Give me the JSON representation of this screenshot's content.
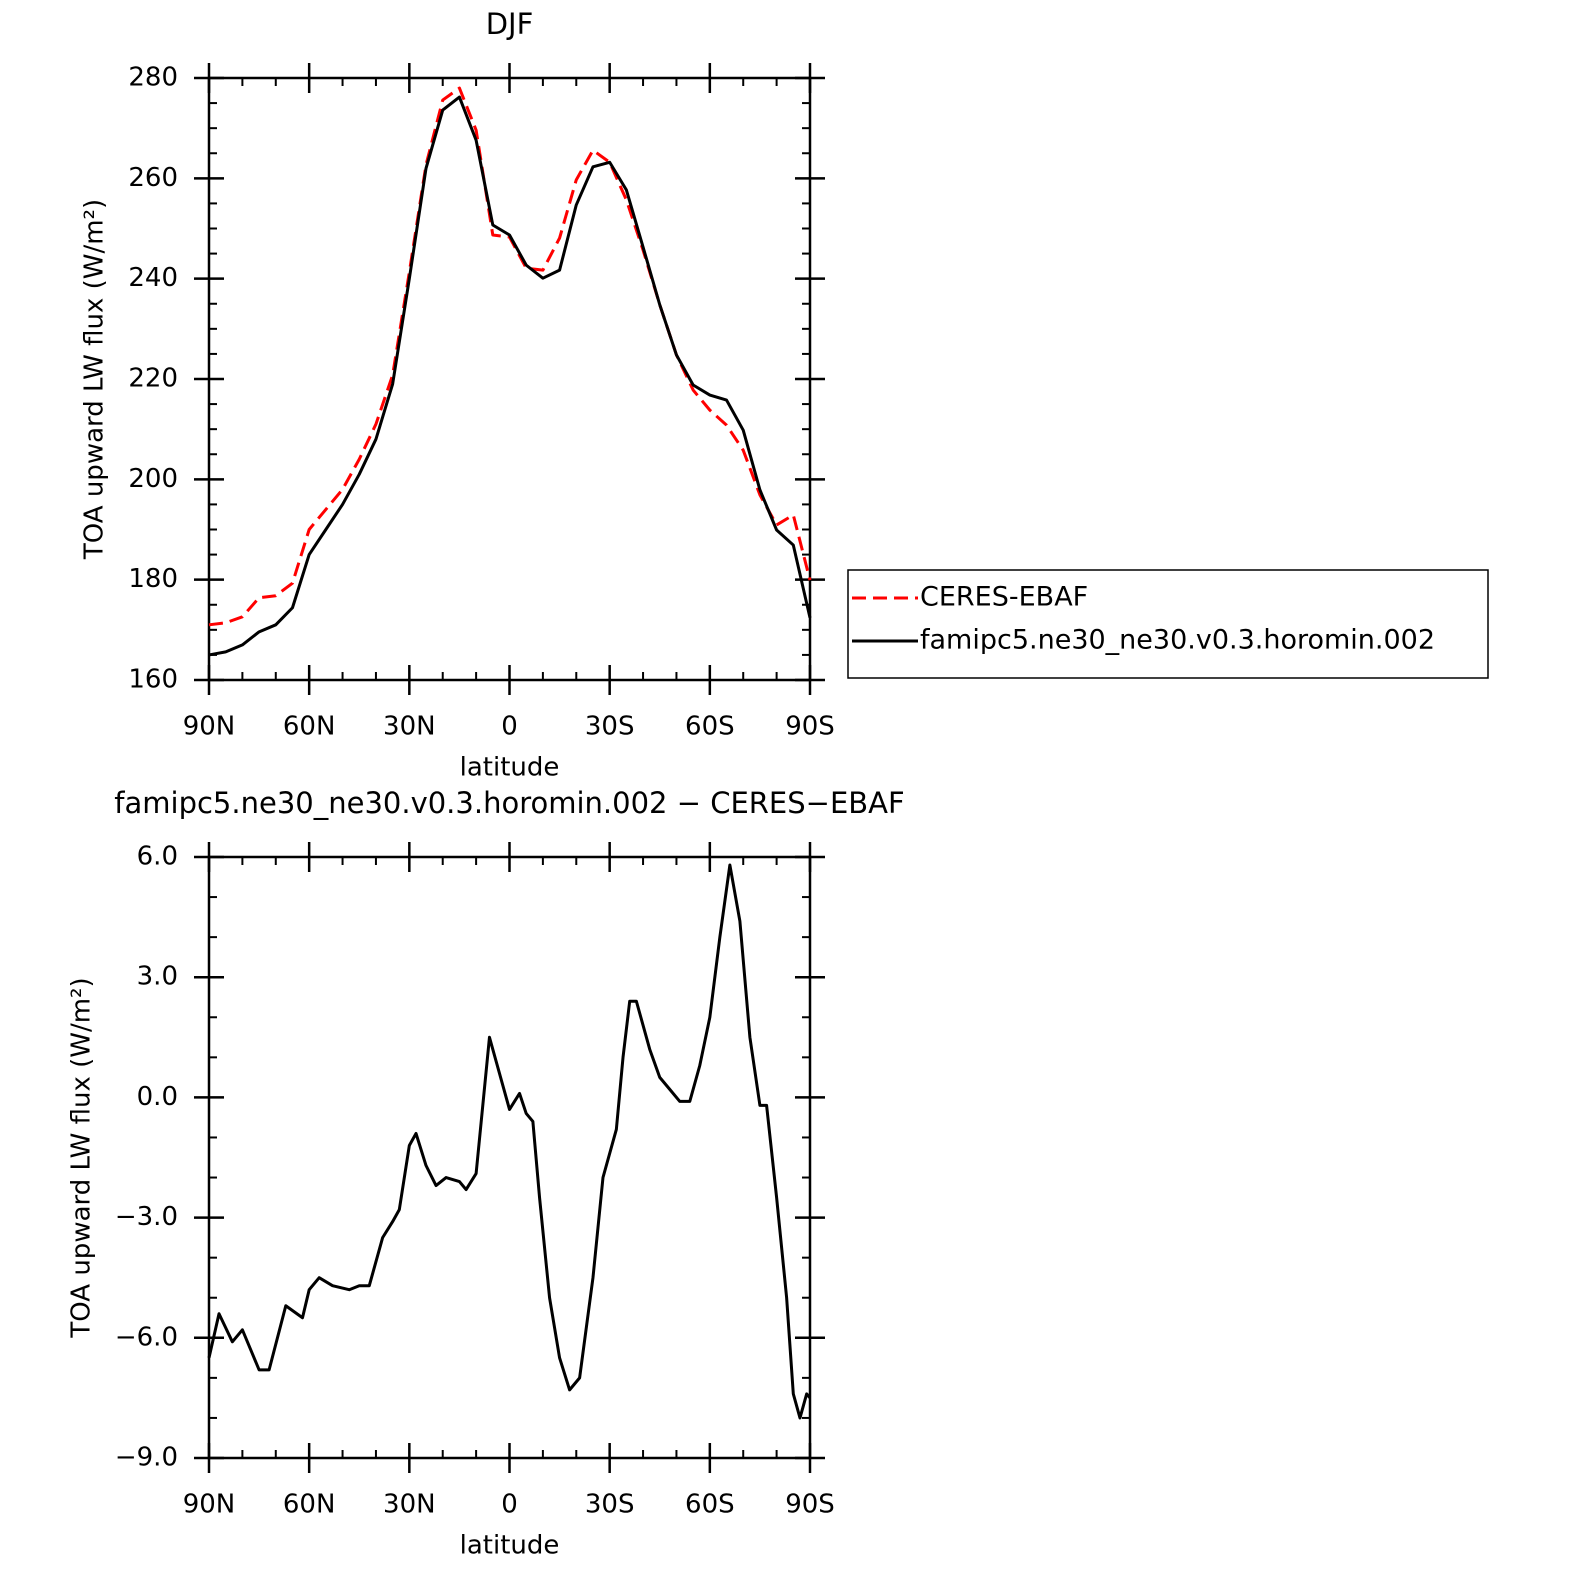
{
  "chart_data": [
    {
      "type": "line",
      "title": "DJF",
      "x_label": "latitude",
      "y_label": "TOA upward LW flux (W/m²)",
      "x": [
        90,
        85,
        80,
        75,
        70,
        65,
        60,
        55,
        50,
        45,
        40,
        35,
        30,
        25,
        20,
        15,
        10,
        5,
        0,
        -5,
        -10,
        -15,
        -20,
        -25,
        -30,
        -35,
        -40,
        -45,
        -50,
        -55,
        -60,
        -65,
        -70,
        -75,
        -80,
        -85,
        -90
      ],
      "series": [
        {
          "name": "CERES-EBAF",
          "color": "#ff0000",
          "dashed": true,
          "values": [
            171,
            171.4,
            172.6,
            176.4,
            176.8,
            179.3,
            190,
            194,
            198,
            204,
            211,
            220.8,
            241.3,
            262.7,
            275.6,
            278,
            269.6,
            248.7,
            248.3,
            242.1,
            241.7,
            248.1,
            259.7,
            265.6,
            263.2,
            255.7,
            245.7,
            234.8,
            224.8,
            217.8,
            213.8,
            210.8,
            205.8,
            196.9,
            190.9,
            192.9,
            179.9
          ]
        },
        {
          "name": "famipc5.ne30_ne30.v0.3.horomin.002",
          "color": "#000000",
          "dashed": false,
          "values": [
            165,
            165.6,
            167,
            169.6,
            171,
            174.4,
            185,
            190,
            195,
            201,
            208,
            219,
            240,
            262,
            273.6,
            276.2,
            267.6,
            250.7,
            248.7,
            242.7,
            240.1,
            241.7,
            254.7,
            262.3,
            263.2,
            257.7,
            246.3,
            234.8,
            224.8,
            218.8,
            216.8,
            215.8,
            209.8,
            197.9,
            189.9,
            186.9,
            172.4
          ]
        }
      ],
      "xlim": [
        90,
        -90
      ],
      "xticks": [
        {
          "value": 90,
          "label": "90N"
        },
        {
          "value": 60,
          "label": "60N"
        },
        {
          "value": 30,
          "label": "30N"
        },
        0,
        {
          "value": -30,
          "label": "30S"
        },
        {
          "value": -60,
          "label": "60S"
        },
        {
          "value": -90,
          "label": "90S"
        }
      ],
      "ylim": [
        160,
        280
      ],
      "yticks": [
        160,
        180,
        200,
        220,
        240,
        260,
        280
      ],
      "legend": "right"
    },
    {
      "type": "line",
      "title": "famipc5.ne30_ne30.v0.3.horomin.002 − CERES−EBAF",
      "x_label": "latitude",
      "y_label": "TOA upward LW flux (W/m²)",
      "x": [
        90,
        87,
        83,
        80,
        77,
        75,
        72,
        67,
        62,
        60,
        57,
        53,
        48,
        45,
        42,
        38,
        35,
        33,
        30,
        28,
        25,
        22,
        19,
        15,
        13,
        10,
        6,
        4,
        0,
        -3,
        -5,
        -7,
        -9,
        -12,
        -15,
        -18,
        -21,
        -25,
        -28,
        -32,
        -34,
        -36,
        -38,
        -42,
        -45,
        -48,
        -51,
        -54,
        -57,
        -60,
        -63,
        -66,
        -69,
        -72,
        -75,
        -77,
        -80,
        -83,
        -85,
        -87,
        -89,
        -90
      ],
      "values": [
        -6.5,
        -5.4,
        -6.1,
        -5.8,
        -6.4,
        -6.8,
        -6.8,
        -5.2,
        -5.5,
        -4.8,
        -4.5,
        -4.7,
        -4.8,
        -4.7,
        -4.7,
        -3.5,
        -3.1,
        -2.8,
        -1.2,
        -0.9,
        -1.7,
        -2.2,
        -2.0,
        -2.1,
        -2.3,
        -1.9,
        1.5,
        0.9,
        -0.3,
        0.1,
        -0.4,
        -0.6,
        -2.5,
        -5.0,
        -6.5,
        -7.3,
        -7.0,
        -4.5,
        -2.0,
        -0.8,
        1.0,
        2.4,
        2.4,
        1.2,
        0.5,
        0.2,
        -0.1,
        -0.1,
        0.8,
        2.0,
        4.0,
        5.8,
        4.4,
        1.5,
        -0.2,
        -0.2,
        -2.5,
        -5.0,
        -7.4,
        -8.0,
        -7.4,
        -7.5
      ],
      "color": "#000000",
      "xlim": [
        90,
        -90
      ],
      "xticks": [
        {
          "value": 90,
          "label": "90N"
        },
        {
          "value": 60,
          "label": "60N"
        },
        {
          "value": 30,
          "label": "30N"
        },
        0,
        {
          "value": -30,
          "label": "30S"
        },
        {
          "value": -60,
          "label": "60S"
        },
        {
          "value": -90,
          "label": "90S"
        }
      ],
      "ylim": [
        -9,
        6
      ],
      "yticks": [
        {
          "value": -9,
          "label": "−9.0"
        },
        {
          "value": -6,
          "label": "−6.0"
        },
        {
          "value": -3,
          "label": "−3.0"
        },
        {
          "value": 0,
          "label": "0.0"
        },
        {
          "value": 3,
          "label": "3.0"
        },
        {
          "value": 6,
          "label": "6.0"
        }
      ]
    }
  ]
}
